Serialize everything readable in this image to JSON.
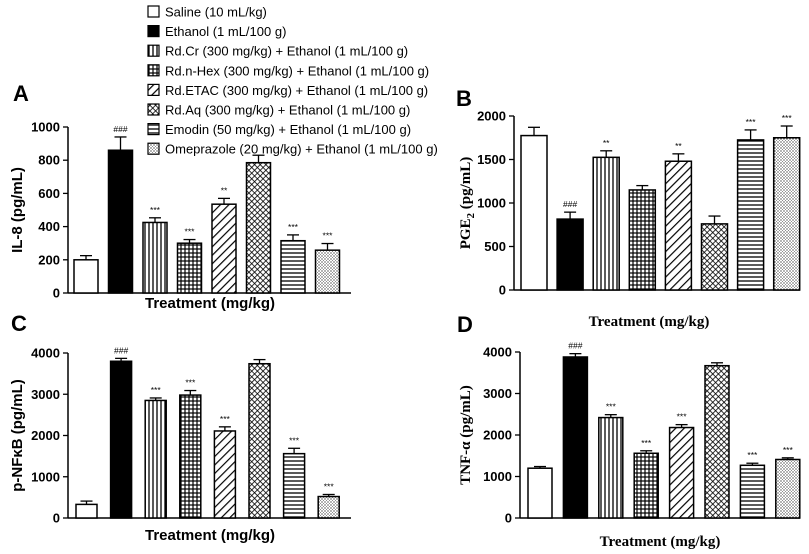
{
  "legend": {
    "entries": [
      {
        "label": "Saline (10 mL/kg)",
        "pattern": "white"
      },
      {
        "label": "Ethanol (1 mL/100 g)",
        "pattern": "black"
      },
      {
        "label": "Rd.Cr (300 mg/kg) + Ethanol (1 mL/100 g)",
        "pattern": "vert"
      },
      {
        "label": "Rd.n-Hex (300 mg/kg) + Ethanol (1 mL/100 g)",
        "pattern": "grid"
      },
      {
        "label": "Rd.ETAC (300 mg/kg) + Ethanol (1 mL/100 g)",
        "pattern": "diag"
      },
      {
        "label": "Rd.Aq (300 mg/kg) + Ethanol (1 mL/100 g)",
        "pattern": "check"
      },
      {
        "label": "Emodin (50 mg/kg) + Ethanol (1 mL/100 g)",
        "pattern": "horiz"
      },
      {
        "label": "Omeprazole (20 mg/kg) + Ethanol (1 mL/100 g)",
        "pattern": "dots"
      }
    ]
  },
  "colors": {
    "bar_stroke": "#000000",
    "background": "#ffffff"
  },
  "chart_data": [
    {
      "panel": "A",
      "type": "bar",
      "ylabel": "IL-8  (pg/mL)",
      "xlabel": "Treatment (mg/kg)",
      "ylim": [
        0,
        1000
      ],
      "yticks": [
        0,
        200,
        400,
        600,
        800,
        1000
      ],
      "ytick_labels": [
        "0",
        "200",
        "400",
        "600",
        "800",
        "1000"
      ],
      "values": [
        200,
        860,
        425,
        300,
        535,
        785,
        315,
        258
      ],
      "errors": [
        25,
        80,
        28,
        22,
        35,
        45,
        35,
        40
      ],
      "annotations": [
        "",
        "###",
        "***",
        "***",
        "**",
        "",
        "***",
        "***"
      ]
    },
    {
      "panel": "B",
      "type": "bar",
      "ylabel": "PGE2  (pg/mL)",
      "ylabel_main": "PGE",
      "ylabel_sub": "2",
      "ylabel_rest": "  (pg/mL)",
      "xlabel": "Treatment (mg/kg)",
      "ylim": [
        0,
        2000
      ],
      "yticks": [
        0,
        500,
        1000,
        1500,
        2000
      ],
      "ytick_labels": [
        "0",
        "500",
        "1000",
        "1500",
        "2000"
      ],
      "values": [
        1775,
        815,
        1525,
        1150,
        1480,
        760,
        1725,
        1750
      ],
      "errors": [
        95,
        80,
        75,
        50,
        85,
        90,
        115,
        135
      ],
      "annotations": [
        "",
        "###",
        "**",
        "",
        "**",
        "",
        "***",
        "***"
      ]
    },
    {
      "panel": "C",
      "type": "bar",
      "ylabel": "p-NFκB  (pg/mL)",
      "xlabel": "Treatment (mg/kg)",
      "ylim": [
        0,
        4000
      ],
      "yticks": [
        0,
        1000,
        2000,
        3000,
        4000
      ],
      "ytick_labels": [
        "0",
        "1000",
        "2000",
        "3000",
        "4000"
      ],
      "values": [
        330,
        3800,
        2850,
        2980,
        2110,
        3740,
        1560,
        520
      ],
      "errors": [
        80,
        70,
        60,
        110,
        100,
        100,
        130,
        50
      ],
      "annotations": [
        "",
        "###",
        "***",
        "***",
        "***",
        "",
        "***",
        "***"
      ]
    },
    {
      "panel": "D",
      "type": "bar",
      "ylabel": "TNF-α  (pg/mL)",
      "xlabel": "Treatment (mg/kg)",
      "ylim": [
        0,
        4000
      ],
      "yticks": [
        0,
        1000,
        2000,
        3000,
        4000
      ],
      "ytick_labels": [
        "0",
        "1000",
        "2000",
        "3000",
        "4000"
      ],
      "values": [
        1200,
        3880,
        2420,
        1560,
        2180,
        3670,
        1270,
        1410
      ],
      "errors": [
        40,
        80,
        70,
        60,
        70,
        70,
        50,
        40
      ],
      "annotations": [
        "",
        "###",
        "***",
        "***",
        "***",
        "",
        "***",
        "***"
      ]
    }
  ]
}
